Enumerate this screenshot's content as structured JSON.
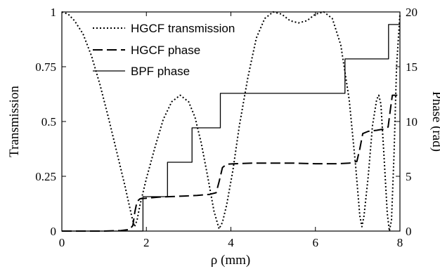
{
  "chart_data": {
    "type": "line",
    "xlabel": "ρ (mm)",
    "ylabel_left": "Transmission",
    "ylabel_right": "Phase (rad)",
    "xlim": [
      0,
      8
    ],
    "ylim_left": [
      0,
      1
    ],
    "ylim_right": [
      0,
      20
    ],
    "x_ticks": [
      "0",
      "2",
      "4",
      "6",
      "8"
    ],
    "y_left_ticks": [
      "0",
      "0.25",
      "0.5",
      "0.75",
      "1"
    ],
    "y_right_ticks": [
      "0",
      "5",
      "10",
      "15",
      "20"
    ],
    "grid": false,
    "legend_position": "top-left",
    "series": [
      {
        "name": "HGCF transmission",
        "axis": "left",
        "style": "dotted",
        "x": [
          0,
          0.15,
          0.3,
          0.5,
          0.7,
          0.9,
          1.1,
          1.3,
          1.5,
          1.65,
          1.72,
          1.78,
          1.85,
          2.0,
          2.2,
          2.4,
          2.6,
          2.8,
          3.0,
          3.15,
          3.3,
          3.45,
          3.6,
          3.72,
          3.8,
          3.9,
          4.05,
          4.2,
          4.4,
          4.6,
          4.8,
          5.0,
          5.2,
          5.4,
          5.6,
          5.8,
          6.0,
          6.2,
          6.4,
          6.6,
          6.8,
          6.95,
          7.05,
          7.1,
          7.15,
          7.25,
          7.35,
          7.45,
          7.5,
          7.55,
          7.62,
          7.7,
          7.75,
          7.8,
          7.86,
          7.92,
          8.0
        ],
        "y": [
          1.0,
          0.99,
          0.96,
          0.9,
          0.8,
          0.67,
          0.52,
          0.36,
          0.2,
          0.07,
          0.02,
          0.05,
          0.12,
          0.24,
          0.38,
          0.51,
          0.59,
          0.62,
          0.59,
          0.52,
          0.4,
          0.25,
          0.09,
          0.01,
          0.04,
          0.12,
          0.28,
          0.48,
          0.7,
          0.88,
          0.97,
          1.0,
          0.99,
          0.96,
          0.95,
          0.96,
          0.99,
          1.0,
          0.97,
          0.85,
          0.6,
          0.3,
          0.07,
          0.02,
          0.07,
          0.25,
          0.48,
          0.6,
          0.62,
          0.58,
          0.35,
          0.08,
          0.0,
          0.05,
          0.35,
          0.75,
          0.99
        ]
      },
      {
        "name": "HGCF phase",
        "axis": "right",
        "style": "dashed",
        "x": [
          0,
          0.5,
          1.0,
          1.4,
          1.6,
          1.68,
          1.73,
          1.78,
          1.85,
          2.0,
          2.3,
          2.6,
          2.9,
          3.2,
          3.5,
          3.65,
          3.72,
          3.8,
          3.9,
          4.1,
          4.5,
          5.0,
          5.5,
          6.0,
          6.5,
          6.8,
          6.98,
          7.05,
          7.12,
          7.25,
          7.45,
          7.6,
          7.72,
          7.77,
          7.82,
          8.0
        ],
        "y": [
          0,
          0,
          0,
          0.05,
          0.15,
          0.5,
          1.8,
          2.7,
          2.95,
          3.0,
          3.1,
          3.15,
          3.2,
          3.25,
          3.35,
          3.5,
          4.5,
          5.8,
          6.1,
          6.15,
          6.2,
          6.2,
          6.2,
          6.15,
          6.15,
          6.2,
          6.35,
          7.5,
          8.9,
          9.1,
          9.2,
          9.3,
          9.5,
          11.0,
          12.4,
          12.4
        ]
      },
      {
        "name": "BPF phase",
        "axis": "right",
        "style": "solid",
        "x": [
          0,
          1.92,
          1.92,
          2.5,
          2.5,
          3.08,
          3.08,
          3.75,
          3.75,
          6.7,
          6.7,
          7.73,
          7.73,
          8.0
        ],
        "y": [
          0,
          0,
          3.14,
          3.14,
          6.28,
          6.28,
          9.42,
          9.42,
          12.57,
          12.57,
          15.71,
          15.71,
          18.85,
          18.85
        ]
      }
    ]
  }
}
